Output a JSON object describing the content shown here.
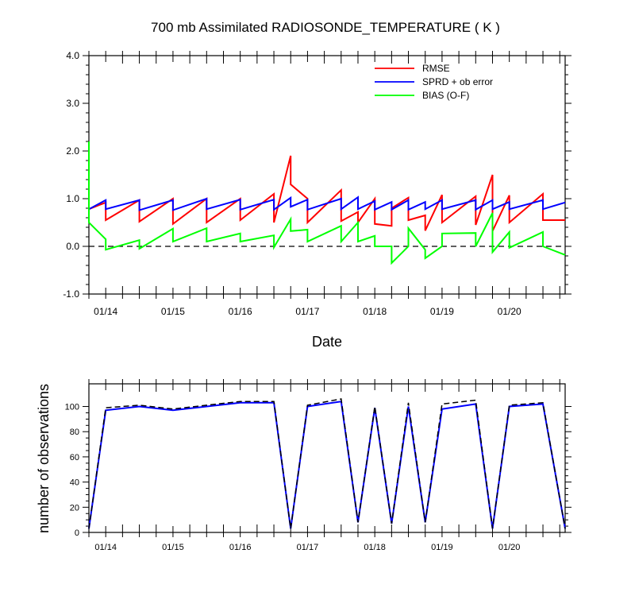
{
  "chart_data": [
    {
      "type": "line",
      "title": "700 mb Assimilated RADIOSONDE_TEMPERATURE ( K )",
      "xlabel": "Date",
      "ylabel": "",
      "xlim": [
        13.75,
        20.83
      ],
      "ylim": [
        -1.0,
        4.0
      ],
      "yticks": [
        -1.0,
        0.0,
        1.0,
        2.0,
        3.0,
        4.0
      ],
      "yticklabels": [
        "-1.0",
        "0.0",
        "1.0",
        "2.0",
        "3.0",
        "4.0"
      ],
      "xticks": [
        14,
        15,
        16,
        17,
        18,
        19,
        20
      ],
      "xticklabels": [
        "01/14",
        "01/15",
        "01/16",
        "01/17",
        "01/18",
        "01/19",
        "01/20"
      ],
      "zero_line": "dashed",
      "legend_position": "top-right",
      "series": [
        {
          "name": "RMSE",
          "color": "#ff0000",
          "x": [
            13.75,
            14.0,
            14.0,
            14.5,
            14.5,
            15.0,
            15.0,
            15.5,
            15.5,
            16.0,
            16.0,
            16.5,
            16.5,
            16.75,
            16.75,
            17.0,
            17.0,
            17.5,
            17.5,
            17.75,
            17.75,
            18.0,
            18.0,
            18.25,
            18.25,
            18.5,
            18.5,
            18.75,
            18.75,
            19.0,
            19.0,
            19.5,
            19.5,
            19.75,
            19.75,
            20.0,
            20.0,
            20.5,
            20.5,
            20.83
          ],
          "y": [
            0.78,
            0.92,
            0.55,
            0.97,
            0.52,
            1.0,
            0.47,
            1.0,
            0.5,
            1.0,
            0.55,
            1.1,
            0.5,
            1.9,
            1.3,
            1.0,
            0.5,
            1.18,
            0.53,
            0.72,
            0.5,
            1.0,
            0.47,
            0.43,
            0.8,
            1.02,
            0.55,
            0.65,
            0.33,
            1.08,
            0.5,
            1.05,
            0.45,
            1.5,
            0.32,
            1.07,
            0.5,
            1.1,
            0.55,
            0.55
          ]
        },
        {
          "name": "SPRD + ob error",
          "color": "#0000ff",
          "x": [
            13.75,
            14.0,
            14.0,
            14.5,
            14.5,
            15.0,
            15.0,
            15.5,
            15.5,
            16.0,
            16.0,
            16.5,
            16.5,
            16.75,
            16.75,
            17.0,
            17.0,
            17.5,
            17.5,
            17.75,
            17.75,
            18.0,
            18.0,
            18.25,
            18.25,
            18.5,
            18.5,
            18.75,
            18.75,
            19.0,
            19.0,
            19.5,
            19.5,
            19.75,
            19.75,
            20.0,
            20.0,
            20.5,
            20.5,
            20.83
          ],
          "y": [
            0.78,
            0.97,
            0.78,
            0.97,
            0.76,
            0.97,
            0.76,
            1.0,
            0.78,
            0.98,
            0.77,
            0.98,
            0.77,
            1.02,
            0.83,
            0.98,
            0.77,
            1.0,
            0.78,
            1.03,
            0.78,
            0.95,
            0.77,
            0.93,
            0.77,
            0.97,
            0.77,
            0.93,
            0.78,
            0.97,
            0.78,
            0.97,
            0.77,
            0.97,
            0.78,
            0.93,
            0.78,
            0.97,
            0.78,
            0.92
          ]
        },
        {
          "name": "BIAS (O-F)",
          "color": "#00ff00",
          "x": [
            13.75,
            13.75,
            14.0,
            14.0,
            14.5,
            14.5,
            15.0,
            15.0,
            15.5,
            15.5,
            16.0,
            16.0,
            16.5,
            16.5,
            16.75,
            16.75,
            17.0,
            17.0,
            17.5,
            17.5,
            17.75,
            17.75,
            18.0,
            18.0,
            18.25,
            18.25,
            18.5,
            18.5,
            18.75,
            18.75,
            19.0,
            19.0,
            19.5,
            19.5,
            19.75,
            19.75,
            20.0,
            20.0,
            20.5,
            20.5,
            20.83
          ],
          "y": [
            2.2,
            0.5,
            0.15,
            -0.07,
            0.13,
            -0.05,
            0.37,
            0.1,
            0.38,
            0.1,
            0.27,
            0.1,
            0.23,
            -0.02,
            0.57,
            0.32,
            0.35,
            0.1,
            0.43,
            0.1,
            0.5,
            0.1,
            0.22,
            0.0,
            0.0,
            -0.35,
            0.0,
            0.38,
            -0.07,
            -0.25,
            0.0,
            0.27,
            0.28,
            0.0,
            0.7,
            -0.12,
            0.3,
            -0.03,
            0.3,
            0.0,
            -0.18
          ]
        }
      ]
    },
    {
      "type": "line",
      "title": "",
      "xlabel": "",
      "ylabel": "number of observations",
      "xlim": [
        13.75,
        20.83
      ],
      "ylim": [
        0,
        118
      ],
      "yticks": [
        0,
        20,
        40,
        60,
        80,
        100
      ],
      "yticklabels": [
        "0",
        "20",
        "40",
        "60",
        "80",
        "100"
      ],
      "xticks": [
        14,
        15,
        16,
        17,
        18,
        19,
        20
      ],
      "xticklabels": [
        "01/14",
        "01/15",
        "01/16",
        "01/17",
        "01/18",
        "01/19",
        "01/20"
      ],
      "series": [
        {
          "name": "",
          "style": "solid",
          "color": "#0000ff",
          "x": [
            13.75,
            14.0,
            14.5,
            15.0,
            15.5,
            16.0,
            16.5,
            16.75,
            17.0,
            17.5,
            17.75,
            18.0,
            18.25,
            18.5,
            18.75,
            19.0,
            19.5,
            19.75,
            20.0,
            20.5,
            20.83
          ],
          "y": [
            3,
            97,
            100,
            97,
            100,
            103,
            103,
            3,
            100,
            104,
            8,
            99,
            7,
            100,
            8,
            98,
            102,
            3,
            100,
            102,
            3
          ]
        },
        {
          "name": "",
          "style": "dashed",
          "color": "#000000",
          "x": [
            13.75,
            14.0,
            14.5,
            15.0,
            15.5,
            16.0,
            16.5,
            16.75,
            17.0,
            17.5,
            17.75,
            18.0,
            18.25,
            18.5,
            18.75,
            19.0,
            19.5,
            19.75,
            20.0,
            20.5,
            20.83
          ],
          "y": [
            3,
            99,
            101,
            98,
            101,
            104,
            104,
            3,
            101,
            106,
            8,
            100,
            7,
            103,
            8,
            102,
            105,
            3,
            101,
            103,
            3
          ]
        }
      ]
    }
  ]
}
